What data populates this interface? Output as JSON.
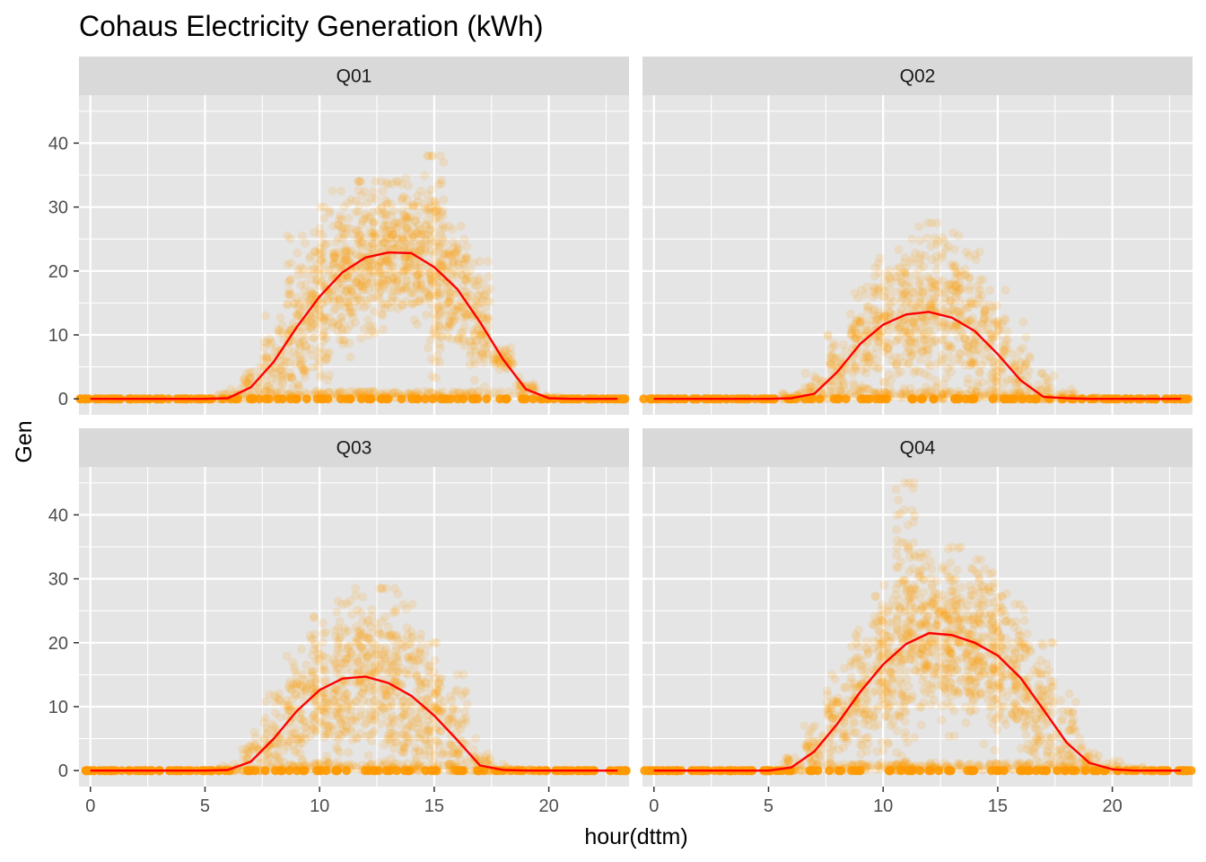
{
  "chart_data": {
    "type": "scatter",
    "title": "Cohaus Electricity Generation (kWh)",
    "xlabel": "hour(dttm)",
    "ylabel": "Gen",
    "xlim": [
      -0.5,
      23.5
    ],
    "ylim": [
      -2.5,
      47.5
    ],
    "x_ticks": [
      0,
      5,
      10,
      15,
      20
    ],
    "y_ticks": [
      0,
      10,
      20,
      30,
      40
    ],
    "grid": true,
    "colors": {
      "points": "#FF9900",
      "line": "#FF0000",
      "panel_bg": "#E5E5E5",
      "strip_bg": "#D9D9D9",
      "grid": "#FFFFFF"
    },
    "facets": [
      {
        "label": "Q01",
        "hours": [
          0,
          1,
          2,
          3,
          4,
          5,
          6,
          7,
          8,
          9,
          10,
          11,
          12,
          13,
          14,
          15,
          16,
          17,
          18,
          19,
          20,
          21,
          22,
          23
        ],
        "mean": [
          0,
          0,
          0,
          0,
          0,
          0,
          0.1,
          1.8,
          5.8,
          11.2,
          16.0,
          19.8,
          22.1,
          22.9,
          22.8,
          20.6,
          17.2,
          12.0,
          6.2,
          1.5,
          0.1,
          0,
          0,
          0
        ],
        "max": [
          0,
          0,
          0,
          0,
          0,
          0,
          1.5,
          5.0,
          13.0,
          25.5,
          30.0,
          32.5,
          34.0,
          34.0,
          34.5,
          38.0,
          27.0,
          21.5,
          8.0,
          3.5,
          0.5,
          0,
          0,
          0
        ]
      },
      {
        "label": "Q02",
        "hours": [
          0,
          1,
          2,
          3,
          4,
          5,
          6,
          7,
          8,
          9,
          10,
          11,
          12,
          13,
          14,
          15,
          16,
          17,
          18,
          19,
          20,
          21,
          22,
          23
        ],
        "mean": [
          0,
          0,
          0,
          0,
          0,
          0,
          0.1,
          0.8,
          4.2,
          8.6,
          11.6,
          13.2,
          13.6,
          12.7,
          10.6,
          7.0,
          2.9,
          0.3,
          0.1,
          0,
          0,
          0,
          0,
          0
        ],
        "max": [
          0,
          0,
          0,
          0,
          0,
          0,
          1.0,
          4.0,
          10.0,
          17.5,
          22.0,
          25.0,
          27.5,
          26.0,
          23.0,
          17.0,
          12.0,
          4.0,
          1.5,
          0.2,
          0,
          0,
          0,
          0
        ]
      },
      {
        "label": "Q03",
        "hours": [
          0,
          1,
          2,
          3,
          4,
          5,
          6,
          7,
          8,
          9,
          10,
          11,
          12,
          13,
          14,
          15,
          16,
          17,
          18,
          19,
          20,
          21,
          22,
          23
        ],
        "mean": [
          0,
          0,
          0,
          0,
          0,
          0,
          0.1,
          1.4,
          5.0,
          9.3,
          12.6,
          14.4,
          14.7,
          13.7,
          11.7,
          8.6,
          4.8,
          0.8,
          0.1,
          0,
          0,
          0,
          0,
          0
        ],
        "max": [
          0,
          0,
          0,
          0,
          0,
          0,
          1.0,
          6.0,
          12.0,
          19.0,
          24.0,
          26.5,
          28.5,
          28.5,
          26.0,
          20.0,
          15.0,
          5.0,
          1.0,
          0.2,
          0,
          0,
          0,
          0
        ]
      },
      {
        "label": "Q04",
        "hours": [
          0,
          1,
          2,
          3,
          4,
          5,
          6,
          7,
          8,
          9,
          10,
          11,
          12,
          13,
          14,
          15,
          16,
          17,
          18,
          19,
          20,
          21,
          22,
          23
        ],
        "mean": [
          0,
          0,
          0,
          0,
          0,
          0,
          0.5,
          3.0,
          7.3,
          12.3,
          16.6,
          19.8,
          21.5,
          21.2,
          20.0,
          18.0,
          14.5,
          9.5,
          4.4,
          1.2,
          0.2,
          0,
          0,
          0
        ],
        "max": [
          0,
          0,
          0,
          0,
          0,
          0,
          2.0,
          7.0,
          16.0,
          22.0,
          29.0,
          45.0,
          34.0,
          35.0,
          33.0,
          31.0,
          26.0,
          20.0,
          12.0,
          5.0,
          1.5,
          0.5,
          0,
          0
        ]
      }
    ]
  }
}
